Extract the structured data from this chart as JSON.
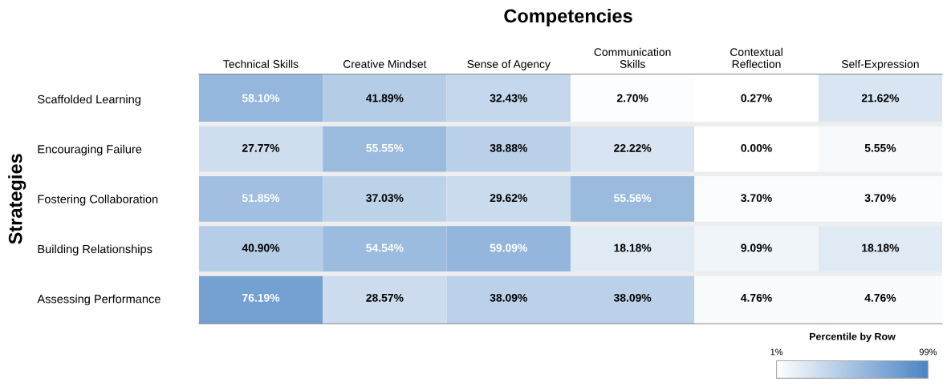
{
  "chart_data": {
    "type": "heatmap",
    "title": "Competencies",
    "ylabel": "Strategies",
    "clabel": "Percentile by Row",
    "categories": [
      "Technical Skills",
      "Creative Mindset",
      "Sense of Agency",
      "Communication\nSkills",
      "Contextual\nReflection",
      "Self-Expression"
    ],
    "y_categories": [
      "Scaffolded Learning",
      "Encouraging Failure",
      "Fostering Collaboration",
      "Building Relationships",
      "Assessing Performance"
    ],
    "cells": [
      [
        58.1,
        41.89,
        32.43,
        2.7,
        0.27,
        21.62
      ],
      [
        27.77,
        55.55,
        38.88,
        22.22,
        0.0,
        5.55
      ],
      [
        51.85,
        37.03,
        29.62,
        55.56,
        3.7,
        3.7
      ],
      [
        40.9,
        54.54,
        59.09,
        18.18,
        9.09,
        18.18
      ],
      [
        76.19,
        28.57,
        38.09,
        38.09,
        4.76,
        4.76
      ]
    ],
    "cell_labels": [
      [
        "58.10%",
        "41.89%",
        "32.43%",
        "2.70%",
        "0.27%",
        "21.62%"
      ],
      [
        "27.77%",
        "55.55%",
        "38.88%",
        "22.22%",
        "0.00%",
        "5.55%"
      ],
      [
        "51.85%",
        "37.03%",
        "29.62%",
        "55.56%",
        "3.70%",
        "3.70%"
      ],
      [
        "40.90%",
        "54.54%",
        "59.09%",
        "18.18%",
        "9.09%",
        "18.18%"
      ],
      [
        "76.19%",
        "28.57%",
        "38.09%",
        "38.09%",
        "4.76%",
        "4.76%"
      ]
    ],
    "colors": [
      "#ffffff",
      "#4a84c4"
    ],
    "clim": [
      1,
      99
    ],
    "cticks": [
      {
        "value": 1,
        "label": "1%"
      },
      {
        "value": 99,
        "label": "99%"
      }
    ]
  }
}
